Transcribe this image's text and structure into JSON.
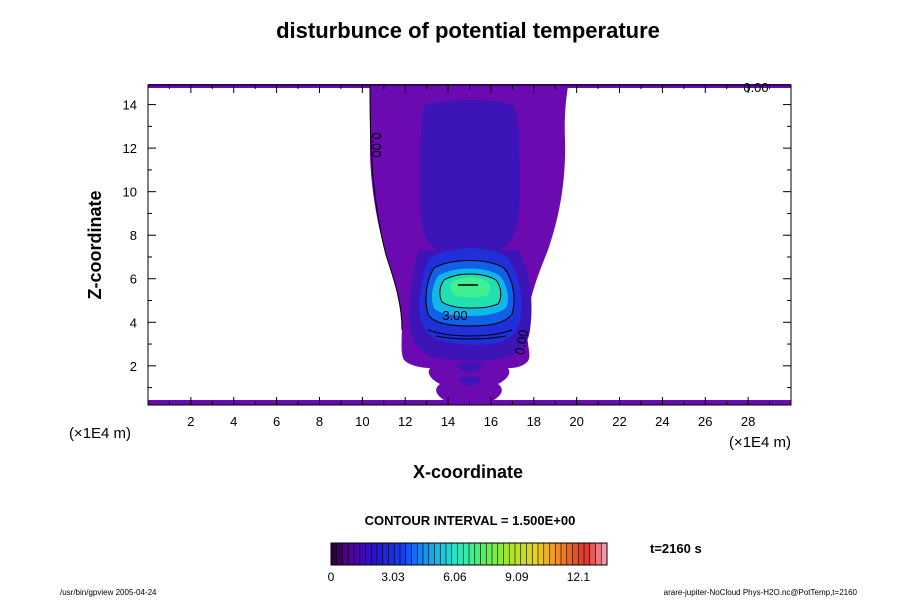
{
  "chart_data": {
    "type": "contour",
    "title": "disturbunce of potential temperature",
    "xlabel": "X-coordinate",
    "ylabel": "Z-coordinate",
    "x_unit": "(×1E4 m)",
    "y_unit": "(×1E4 m)",
    "xlim": [
      0,
      30
    ],
    "ylim": [
      0.2,
      14.9
    ],
    "x_ticks": [
      "2",
      "4",
      "6",
      "8",
      "10",
      "12",
      "14",
      "16",
      "18",
      "20",
      "22",
      "24",
      "26",
      "28"
    ],
    "y_ticks": [
      "2",
      "4",
      "6",
      "8",
      "10",
      "12",
      "14"
    ],
    "contour_interval_text": "CONTOUR INTERVAL = 1.500E+00",
    "time_label": "t=2160 s",
    "colorbar_ticks": [
      "0",
      "3.03",
      "6.06",
      "9.09",
      "12.1"
    ],
    "colorbar_range": [
      0,
      13.5
    ],
    "contour_labels": [
      "0.00",
      "0.00",
      "3.00",
      "0.00"
    ],
    "plume_center_x": 15,
    "max_disturbance_z": 5.6,
    "colors": {
      "level_0": "#6a0ab0",
      "level_1": "#3c14b8",
      "level_2": "#2030d8",
      "level_3": "#1060e8",
      "level_4": "#10b8e8",
      "level_5": "#20e0b0",
      "level_6": "#40f090"
    }
  },
  "footer": {
    "left": "/usr/bin/gpview 2005-04-24",
    "right": "arare-jupiter-NoCloud Phys-H2O.nc@PotTemp,t=2160"
  }
}
